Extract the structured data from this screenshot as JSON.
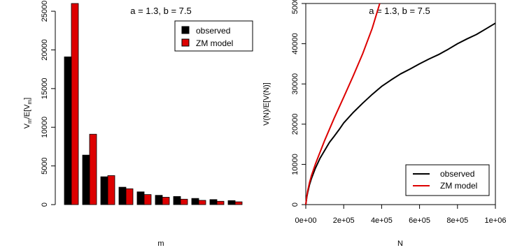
{
  "chart_data": [
    {
      "type": "bar",
      "title": "a = 1.3, b = 7.5",
      "xlabel": "m",
      "ylabel": "V_m/E[V_m]",
      "ylabel_main": "V",
      "ylabel_sub": "m",
      "ylabel_mid": "/E[V",
      "ylabel_end": "]",
      "ylim": [
        0,
        26000
      ],
      "yticks": [
        0,
        5000,
        10000,
        15000,
        20000,
        25000
      ],
      "ytick_labels": [
        "0",
        "5000",
        "10000",
        "15000",
        "20000",
        "25000"
      ],
      "categories": [
        "1",
        "2",
        "3",
        "4",
        "5",
        "6",
        "7",
        "8",
        "9",
        "10"
      ],
      "series": [
        {
          "name": "observed",
          "color": "#000000",
          "values": [
            19100,
            6400,
            3600,
            2250,
            1650,
            1200,
            1050,
            800,
            650,
            520
          ]
        },
        {
          "name": "ZM model",
          "color": "#dd0000",
          "values": [
            26000,
            9100,
            3750,
            2050,
            1300,
            950,
            700,
            550,
            430,
            360
          ]
        }
      ],
      "legend": {
        "position": "top-right",
        "entries": [
          "observed",
          "ZM model"
        ]
      }
    },
    {
      "type": "line",
      "title": "a = 1.3, b = 7.5",
      "xlabel": "N",
      "ylabel": "V(N)/E[V(N)]",
      "xlim": [
        0,
        1000000
      ],
      "ylim": [
        0,
        50000
      ],
      "xticks": [
        0,
        200000,
        400000,
        600000,
        800000,
        1000000
      ],
      "xtick_labels": [
        "0e+00",
        "2e+05",
        "4e+05",
        "6e+05",
        "8e+05",
        "1e+06"
      ],
      "yticks": [
        0,
        10000,
        20000,
        30000,
        40000,
        50000
      ],
      "ytick_labels": [
        "0",
        "10000",
        "20000",
        "30000",
        "40000",
        "50000"
      ],
      "series": [
        {
          "name": "observed",
          "color": "#000000",
          "x": [
            0,
            5000,
            10000,
            20000,
            30000,
            50000,
            75000,
            100000,
            125000,
            150000,
            175000,
            200000,
            250000,
            300000,
            350000,
            400000,
            450000,
            500000,
            550000,
            600000,
            650000,
            700000,
            750000,
            800000,
            850000,
            900000,
            950000,
            1000000
          ],
          "y": [
            0,
            1800,
            3000,
            5000,
            6500,
            9000,
            11500,
            13500,
            15500,
            17000,
            18600,
            20300,
            22900,
            25200,
            27400,
            29400,
            31000,
            32500,
            33700,
            35000,
            36200,
            37300,
            38600,
            40000,
            41200,
            42300,
            43700,
            45100
          ]
        },
        {
          "name": "ZM model",
          "color": "#dd0000",
          "x": [
            0,
            5000,
            10000,
            20000,
            30000,
            50000,
            75000,
            100000,
            150000,
            200000,
            250000,
            300000,
            350000,
            390000
          ],
          "y": [
            0,
            2000,
            3400,
            5500,
            7200,
            10000,
            13000,
            16000,
            21500,
            26700,
            32000,
            37500,
            43800,
            50000
          ]
        }
      ],
      "legend": {
        "position": "bottom-right",
        "entries": [
          "observed",
          "ZM model"
        ]
      }
    }
  ]
}
